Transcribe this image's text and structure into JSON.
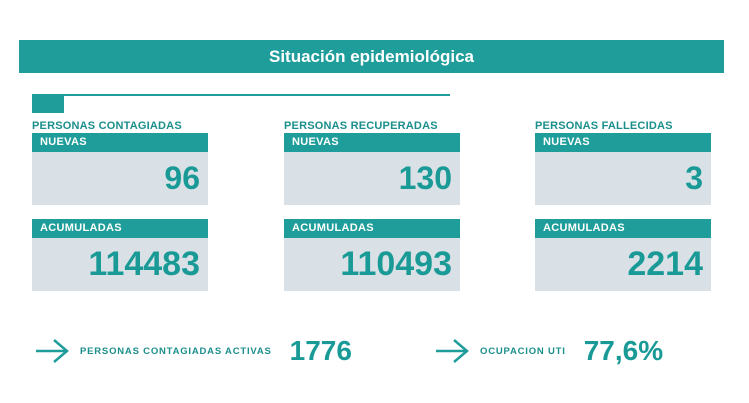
{
  "header": {
    "title": "Situación epidemiológica"
  },
  "columns": [
    {
      "title": "PERSONAS CONTAGIADAS",
      "nuevas_label": "NUEVAS",
      "nuevas_value": "96",
      "acumuladas_label": "ACUMULADAS",
      "acumuladas_value": "114483"
    },
    {
      "title": "PERSONAS RECUPERADAS",
      "nuevas_label": "NUEVAS",
      "nuevas_value": "130",
      "acumuladas_label": "ACUMULADAS",
      "acumuladas_value": "110493"
    },
    {
      "title": "PERSONAS FALLECIDAS",
      "nuevas_label": "NUEVAS",
      "nuevas_value": "3",
      "acumuladas_label": "ACUMULADAS",
      "acumuladas_value": "2214"
    }
  ],
  "footer": {
    "activas_label": "PERSONAS CONTAGIADAS ACTIVAS",
    "activas_value": "1776",
    "uti_label": "OCUPACION UTI",
    "uti_value": "77,6%"
  },
  "icons": {
    "arrow": "arrow-right-icon"
  },
  "colors": {
    "accent": "#1f9d9a",
    "card_bg": "#d9e1e6",
    "text": "#1a9a96"
  }
}
